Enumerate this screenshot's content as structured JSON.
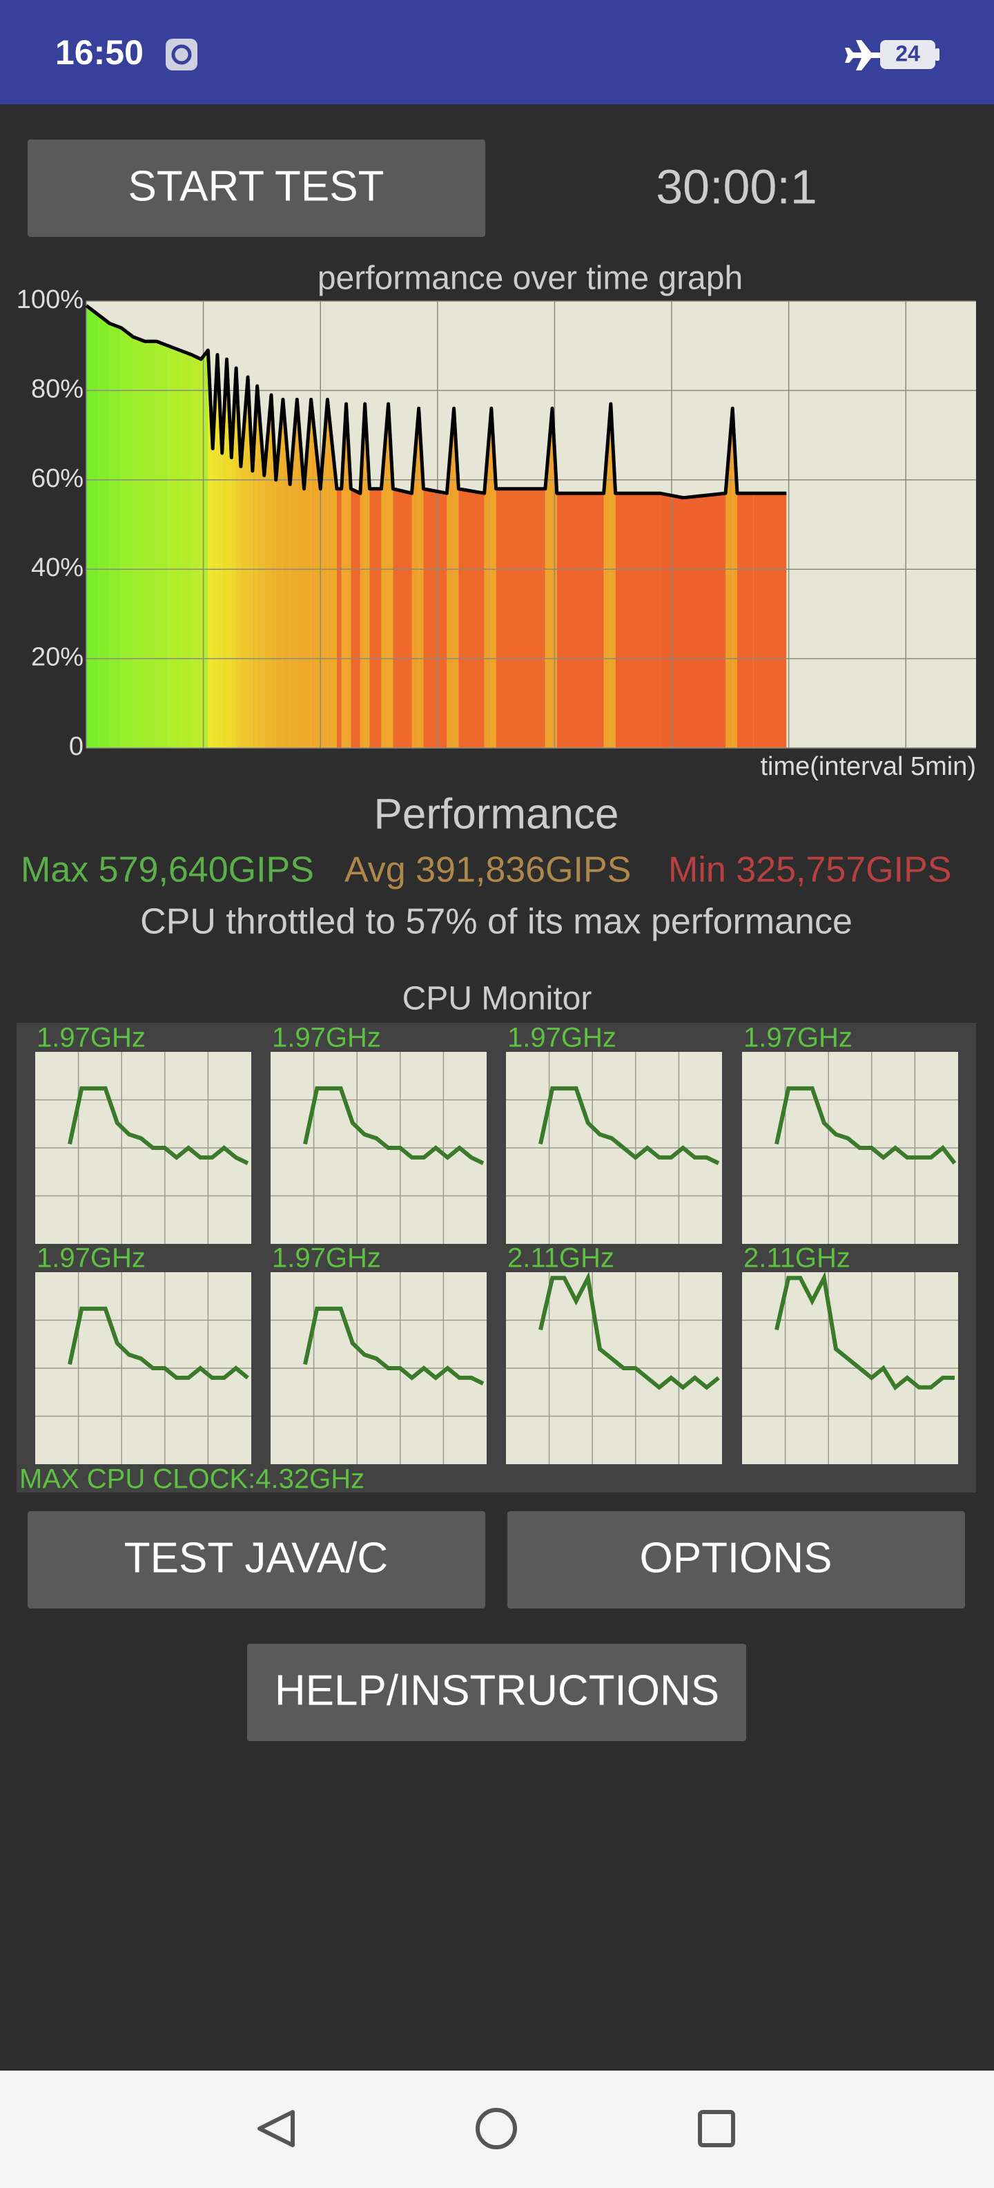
{
  "status_bar": {
    "time": "16:50",
    "battery": "24"
  },
  "start_button": "START TEST",
  "timer": "30:00:1",
  "chart_data": {
    "type": "area",
    "title": "performance over time graph",
    "x_label": "time(interval 5min)",
    "x": [
      0,
      0.5,
      1,
      1.5,
      2,
      2.5,
      3,
      3.5,
      4,
      4.5,
      4.9,
      5.2,
      5.4,
      5.6,
      5.8,
      6.0,
      6.2,
      6.4,
      6.6,
      6.9,
      7.1,
      7.3,
      7.6,
      7.9,
      8.1,
      8.4,
      8.7,
      9.0,
      9.3,
      9.6,
      10.0,
      10.3,
      10.7,
      10.9,
      11.1,
      11.3,
      11.7,
      11.9,
      12.1,
      12.6,
      12.9,
      13.1,
      13.9,
      14.2,
      14.4,
      15.4,
      15.7,
      15.9,
      17.0,
      17.3,
      17.5,
      19.6,
      19.9,
      20.1,
      22.1,
      22.4,
      22.6,
      24.5,
      25.5,
      27.3,
      27.6,
      27.8,
      28.5,
      29.9
    ],
    "values": [
      99,
      97,
      95,
      94,
      92,
      91,
      91,
      90,
      89,
      88,
      87,
      89,
      67,
      88,
      66,
      87,
      65,
      85,
      63,
      83,
      62,
      81,
      61,
      79,
      60,
      78,
      59,
      78,
      58,
      78,
      58,
      78,
      58,
      58,
      77,
      58,
      57,
      77,
      58,
      58,
      77,
      58,
      57,
      76,
      58,
      57,
      76,
      58,
      57,
      76,
      58,
      58,
      76,
      57,
      57,
      77,
      57,
      57,
      56,
      57,
      76,
      57,
      57,
      57
    ],
    "color": "#000000",
    "xlim": [
      0,
      38
    ],
    "xticks": [
      0,
      5,
      10,
      15,
      20,
      25,
      30,
      35
    ],
    "ylim": [
      0,
      100
    ],
    "yticks": [
      0,
      {
        "value": 20,
        "label": "20%"
      },
      {
        "value": 40,
        "label": "40%"
      },
      {
        "value": 60,
        "label": "60%"
      },
      {
        "value": 80,
        "label": "80%"
      },
      {
        "value": 100,
        "label": "100%"
      }
    ],
    "grid": true
  },
  "performance": {
    "title": "Performance",
    "max": "Max 579,640GIPS",
    "avg": "Avg 391,836GIPS",
    "min": "Min 325,757GIPS",
    "summary": "CPU throttled to 57% of its max performance"
  },
  "cpu_monitor": {
    "title": "CPU Monitor",
    "ylim": [
      0,
      100
    ],
    "color": "#3a7a2a",
    "cores": [
      {
        "label": "1.97GHz",
        "values": [
          52,
          81,
          81,
          81,
          63,
          57,
          55,
          50,
          50,
          45,
          50,
          45,
          45,
          50,
          45,
          42
        ]
      },
      {
        "label": "1.97GHz",
        "values": [
          52,
          81,
          81,
          81,
          63,
          57,
          55,
          50,
          50,
          45,
          45,
          50,
          45,
          50,
          45,
          42
        ]
      },
      {
        "label": "1.97GHz",
        "values": [
          52,
          81,
          81,
          81,
          63,
          57,
          55,
          50,
          45,
          50,
          45,
          45,
          50,
          45,
          45,
          42
        ]
      },
      {
        "label": "1.97GHz",
        "values": [
          52,
          81,
          81,
          81,
          63,
          57,
          55,
          50,
          50,
          45,
          50,
          45,
          45,
          45,
          50,
          42
        ]
      },
      {
        "label": "1.97GHz",
        "values": [
          52,
          81,
          81,
          81,
          63,
          57,
          55,
          50,
          50,
          45,
          45,
          50,
          45,
          45,
          50,
          45
        ]
      },
      {
        "label": "1.97GHz",
        "values": [
          52,
          81,
          81,
          81,
          63,
          57,
          55,
          50,
          50,
          45,
          50,
          45,
          50,
          45,
          45,
          42
        ]
      },
      {
        "label": "2.11GHz",
        "values": [
          70,
          97,
          97,
          85,
          97,
          60,
          55,
          50,
          50,
          45,
          40,
          45,
          40,
          45,
          40,
          45
        ]
      },
      {
        "label": "2.11GHz",
        "values": [
          70,
          97,
          97,
          85,
          97,
          60,
          55,
          50,
          45,
          50,
          40,
          45,
          40,
          40,
          45,
          45
        ]
      }
    ],
    "max_clock": "MAX CPU CLOCK:4.32GHz"
  },
  "buttons": {
    "test": "TEST JAVA/C",
    "options": "OPTIONS",
    "help": "HELP/INSTRUCTIONS"
  }
}
